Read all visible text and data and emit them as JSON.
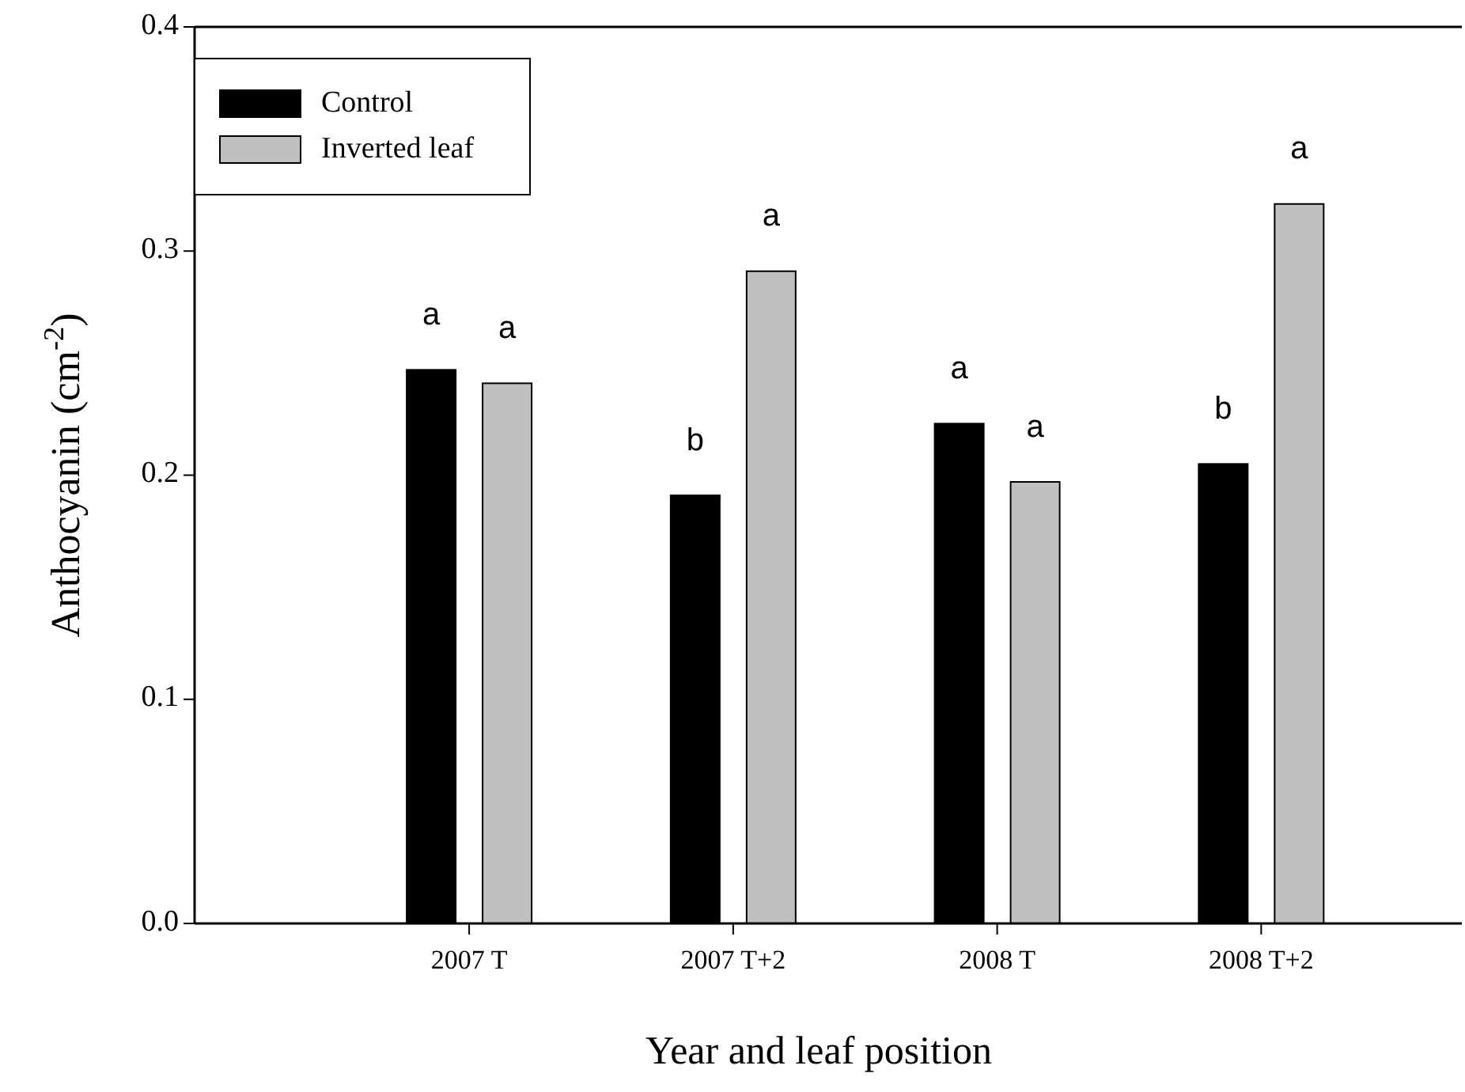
{
  "chart_data": {
    "type": "bar",
    "xlabel": "Year and leaf position",
    "ylabel": "Anthocyanin (cm$^{-2}$)",
    "categories": [
      "2007 T",
      "2007 T+2",
      "2008 T",
      "2008 T+2"
    ],
    "series": [
      {
        "name": "Control",
        "color": "#000000",
        "values": [
          0.247,
          0.191,
          0.223,
          0.205
        ]
      },
      {
        "name": "Inverted leaf",
        "color": "#c0c0c0",
        "values": [
          0.241,
          0.291,
          0.197,
          0.321
        ]
      }
    ],
    "ylim": [
      0,
      0.4
    ],
    "yticks": [
      {
        "value": 0,
        "label": "0.0"
      },
      0.1,
      0.2,
      0.3,
      0.4
    ],
    "legend": "top left",
    "grid": false,
    "annotations": [
      "a",
      "a",
      "b",
      "a",
      "a",
      "a",
      "b",
      "a"
    ]
  }
}
